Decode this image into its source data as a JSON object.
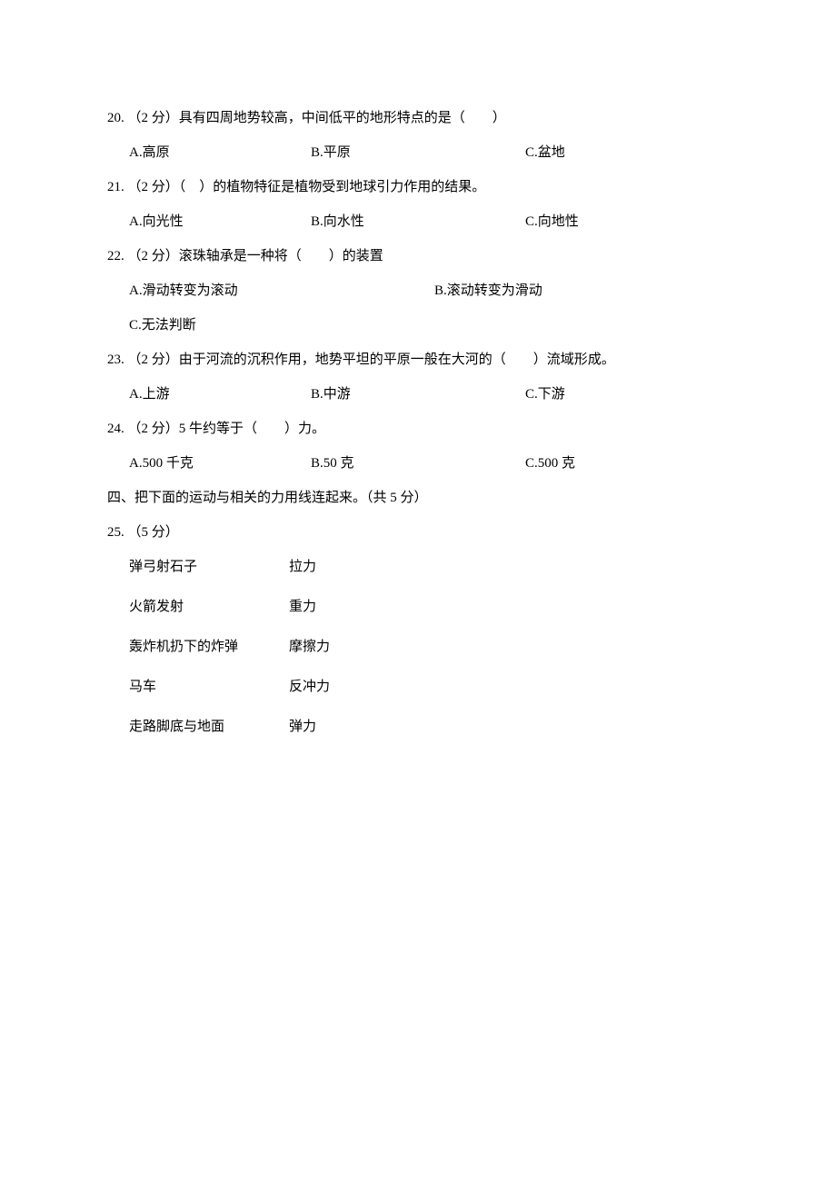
{
  "questions": [
    {
      "number": "20.",
      "points": "（2 分）",
      "stem": "具有四周地势较高，中间低平的地形特点的是（　　）",
      "options": [
        "A.高原",
        "B.平原",
        "C.盆地"
      ],
      "layout": "3col"
    },
    {
      "number": "21.",
      "points": "（2 分）",
      "stem": "（　）的植物特征是植物受到地球引力作用的结果。",
      "options": [
        "A.向光性",
        "B.向水性",
        "C.向地性"
      ],
      "layout": "3col"
    },
    {
      "number": "22.",
      "points": "（2 分）",
      "stem": "滚珠轴承是一种将（　　）的装置",
      "options": [
        "A.滑动转变为滚动",
        "B.滚动转变为滑动"
      ],
      "optionC": "C.无法判断",
      "layout": "2col-plus"
    },
    {
      "number": "23.",
      "points": "（2 分）",
      "stem": "由于河流的沉积作用，地势平坦的平原一般在大河的（　　）流域形成。",
      "options": [
        "A.上游",
        "B.中游",
        "C.下游"
      ],
      "layout": "3col"
    },
    {
      "number": "24.",
      "points": "（2 分）",
      "stem": "5 牛约等于（　　）力。",
      "options": [
        "A.500 千克",
        "B.50 克",
        "C.500 克"
      ],
      "layout": "3col"
    }
  ],
  "section4": {
    "title": "四、把下面的运动与相关的力用线连起来。（共 5 分）",
    "q25_number": "25.",
    "q25_points": "（5 分）",
    "matches": [
      {
        "left": "弹弓射石子",
        "right": "拉力"
      },
      {
        "left": "火箭发射",
        "right": "重力"
      },
      {
        "left": "轰炸机扔下的炸弹",
        "right": "摩擦力"
      },
      {
        "left": "马车",
        "right": "反冲力"
      },
      {
        "left": "走路脚底与地面",
        "right": "弹力"
      }
    ]
  }
}
